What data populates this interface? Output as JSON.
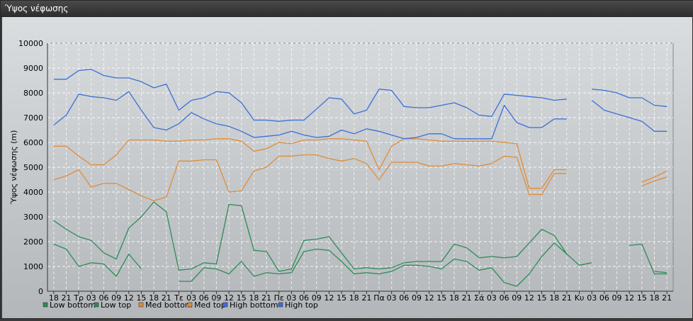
{
  "window": {
    "title": "Ύψος νέφωσης"
  },
  "chart_data": {
    "type": "line",
    "title": "",
    "xlabel": "",
    "ylabel": "Ύψος νέφωσης (m)",
    "ylim": [
      0,
      10000
    ],
    "yticks": [
      0,
      1000,
      2000,
      3000,
      4000,
      5000,
      6000,
      7000,
      8000,
      9000,
      10000
    ],
    "grid": true,
    "legend_position": "bottom-left",
    "categories": [
      "18",
      "21",
      "Τρ",
      "03",
      "06",
      "09",
      "12",
      "15",
      "18",
      "21",
      "Τε",
      "03",
      "06",
      "09",
      "12",
      "15",
      "18",
      "21",
      "Πε",
      "03",
      "06",
      "09",
      "12",
      "15",
      "18",
      "21",
      "Πα",
      "03",
      "06",
      "09",
      "12",
      "15",
      "18",
      "21",
      "Σά",
      "03",
      "06",
      "09",
      "12",
      "15",
      "18",
      "21",
      "Κυ",
      "03",
      "06",
      "09",
      "12",
      "15",
      "18",
      "21"
    ],
    "series": [
      {
        "name": "Low bottom",
        "color": "#2e8b57",
        "values": [
          1900,
          1700,
          1000,
          1150,
          1100,
          600,
          1500,
          900,
          null,
          null,
          400,
          400,
          950,
          900,
          700,
          1200,
          600,
          750,
          700,
          750,
          1600,
          1700,
          1650,
          1200,
          700,
          750,
          700,
          800,
          1050,
          1050,
          1000,
          900,
          1300,
          1200,
          850,
          950,
          350,
          200,
          700,
          1400,
          1950,
          1500,
          null,
          null,
          null,
          null,
          null,
          null,
          800,
          750
        ]
      },
      {
        "name": "Low top",
        "color": "#2e8b57",
        "values": [
          2850,
          2500,
          2200,
          2050,
          1550,
          1300,
          2550,
          3000,
          3600,
          3200,
          850,
          900,
          1150,
          1100,
          3500,
          3450,
          1650,
          1600,
          800,
          900,
          2050,
          2100,
          2200,
          1550,
          900,
          950,
          900,
          950,
          1150,
          1200,
          1200,
          1200,
          1900,
          1750,
          1350,
          1400,
          1350,
          1400,
          1950,
          2500,
          2250,
          1500,
          1050,
          1150,
          null,
          null,
          1850,
          1900,
          700,
          700
        ]
      },
      {
        "name": "Med bottom",
        "color": "#e08c3a",
        "values": [
          4500,
          4650,
          4900,
          4200,
          4350,
          4350,
          4100,
          3850,
          3650,
          3800,
          5250,
          5250,
          5300,
          5300,
          4000,
          4050,
          4850,
          5000,
          5450,
          5450,
          5500,
          5500,
          5350,
          5250,
          5350,
          5150,
          4500,
          5200,
          5200,
          5200,
          5050,
          5050,
          5150,
          5100,
          5050,
          5150,
          5450,
          5400,
          3900,
          3900,
          4750,
          4750,
          null,
          null,
          null,
          null,
          null,
          4250,
          4450,
          4600
        ]
      },
      {
        "name": "Med top",
        "color": "#e08c3a",
        "values": [
          5850,
          5850,
          5450,
          5100,
          5100,
          5500,
          6100,
          6100,
          6100,
          6050,
          6050,
          6100,
          6100,
          6150,
          6150,
          6050,
          5650,
          5750,
          6000,
          5950,
          6100,
          6100,
          6150,
          6150,
          6100,
          6050,
          4900,
          5850,
          6150,
          6150,
          6100,
          6050,
          6050,
          6050,
          6050,
          6050,
          6000,
          5950,
          4150,
          4150,
          4900,
          4900,
          null,
          null,
          null,
          null,
          null,
          4400,
          4600,
          4850
        ]
      },
      {
        "name": "High bottom",
        "color": "#3a6fd8",
        "values": [
          6700,
          7100,
          7950,
          7850,
          7800,
          7700,
          8050,
          7300,
          6600,
          6500,
          6750,
          7200,
          6950,
          6750,
          6650,
          6450,
          6200,
          6250,
          6300,
          6450,
          6300,
          6200,
          6250,
          6500,
          6350,
          6550,
          6450,
          6300,
          6150,
          6200,
          6350,
          6350,
          6150,
          6150,
          6150,
          6150,
          7500,
          6800,
          6600,
          6600,
          6950,
          6950,
          null,
          7700,
          7300,
          7150,
          7000,
          6850,
          6450,
          6450
        ]
      },
      {
        "name": "High top",
        "color": "#3a6fd8",
        "values": [
          8550,
          8550,
          8900,
          8950,
          8700,
          8600,
          8600,
          8450,
          8200,
          8350,
          7300,
          7700,
          7800,
          8050,
          8000,
          7600,
          6900,
          6900,
          6850,
          6900,
          6900,
          7350,
          7800,
          7750,
          7150,
          7300,
          8150,
          8100,
          7450,
          7400,
          7400,
          7500,
          7600,
          7400,
          7100,
          7050,
          7950,
          7900,
          7850,
          7800,
          7700,
          7750,
          null,
          8150,
          8100,
          8000,
          7800,
          7800,
          7500,
          7450
        ]
      }
    ]
  }
}
